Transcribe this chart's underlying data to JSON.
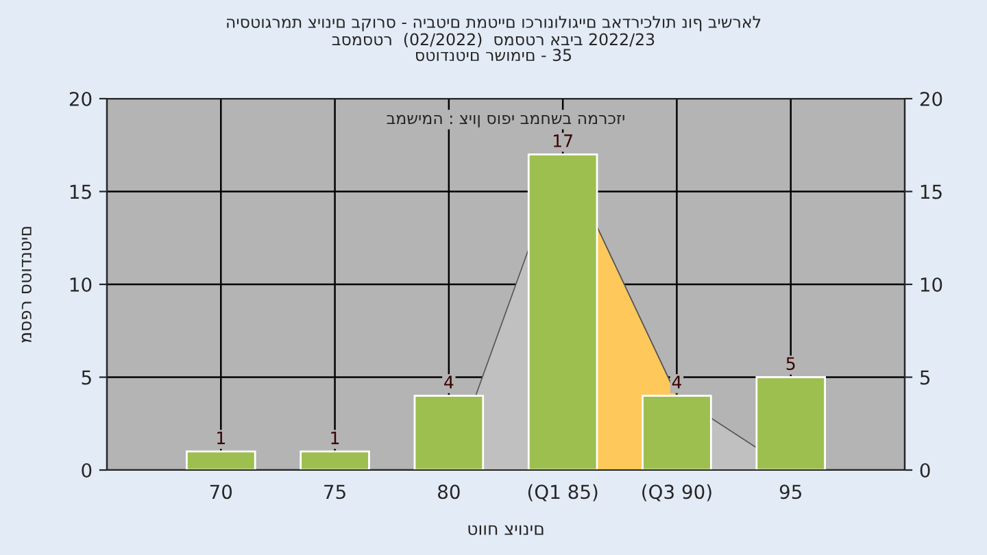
{
  "chart_data": {
    "type": "bar",
    "title": "היסטוגרמת ציונים בקורס - היבטים תמטיים וכרונולוגיים באדריכלות נוף בישראל",
    "subtitle": "בסמסטר  (02/2022)  סמסטר אביב 2022/23\nסטודנטים רשומים - 35",
    "xlabel": "טווח ציונים",
    "ylabel": "מספר סטודנטים",
    "annotations": [
      "במשימה : ציון סופי במחשב המרכזי"
    ],
    "categories": [
      "70",
      "75",
      "80",
      "(Q1 85)",
      "(Q3 90)",
      "95"
    ],
    "series": [
      {
        "type": "area",
        "color": "#c0c0c0",
        "values": [
          0,
          0,
          0,
          17,
          4,
          0
        ]
      },
      {
        "type": "area",
        "color": "#ffc85a",
        "values": [
          null,
          null,
          null,
          17,
          4,
          null
        ]
      },
      {
        "color": "#9dbf4f",
        "values": [
          1,
          1,
          4,
          17,
          4,
          5
        ],
        "value_labels": [
          "1",
          "1",
          "4",
          "17",
          "4",
          "5"
        ]
      }
    ],
    "ylim": [
      0,
      20
    ],
    "yticks": [
      0,
      5,
      10,
      15,
      20
    ],
    "y2lim": [
      0,
      20
    ],
    "y2ticks": [
      0,
      5,
      10,
      15,
      20
    ],
    "grid": true,
    "legend": false
  }
}
